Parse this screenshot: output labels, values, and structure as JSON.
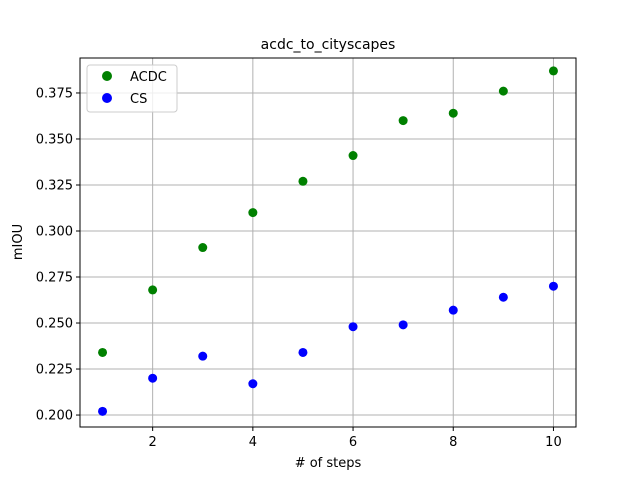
{
  "chart_data": {
    "type": "scatter",
    "title": "acdc_to_cityscapes",
    "xlabel": "# of steps",
    "ylabel": "mIOU",
    "xlim": [
      0.55,
      10.45
    ],
    "ylim": [
      0.1935,
      0.394
    ],
    "xticks": [
      2,
      4,
      6,
      8,
      10
    ],
    "yticks": [
      0.2,
      0.225,
      0.25,
      0.275,
      0.3,
      0.325,
      0.35,
      0.375
    ],
    "ytick_labels": [
      "0.200",
      "0.225",
      "0.250",
      "0.275",
      "0.300",
      "0.325",
      "0.350",
      "0.375"
    ],
    "grid": true,
    "legend": "top-left",
    "x": [
      1,
      2,
      3,
      4,
      5,
      6,
      7,
      8,
      9,
      10
    ],
    "series": [
      {
        "name": "ACDC",
        "color": "#008000",
        "values": [
          0.234,
          0.268,
          0.291,
          0.31,
          0.327,
          0.341,
          0.36,
          0.364,
          0.376,
          0.387
        ]
      },
      {
        "name": "CS",
        "color": "#0000ff",
        "values": [
          0.202,
          0.22,
          0.232,
          0.217,
          0.234,
          0.248,
          0.249,
          0.257,
          0.264,
          0.27
        ]
      }
    ]
  }
}
